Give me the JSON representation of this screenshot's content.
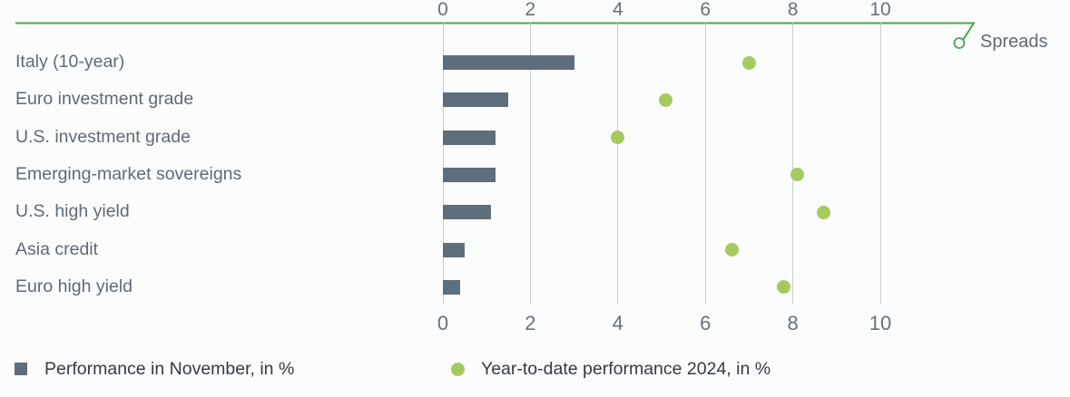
{
  "chart_data": {
    "type": "bar",
    "orientation": "horizontal",
    "title": "",
    "categories": [
      "Italy (10-year)",
      "Euro investment grade",
      "U.S. investment grade",
      "Emerging-market sovereigns",
      "U.S. high yield",
      "Asia credit",
      "Euro high yield"
    ],
    "series": [
      {
        "name": "Performance in November, in %",
        "type": "bar",
        "color": "#5f6e7b",
        "values": [
          3.0,
          1.5,
          1.2,
          1.2,
          1.1,
          0.5,
          0.4
        ]
      },
      {
        "name": "Year-to-date performance 2024, in %",
        "type": "scatter",
        "color": "#a6ca60",
        "values": [
          7.0,
          5.1,
          4.0,
          8.1,
          8.7,
          6.6,
          7.8
        ]
      }
    ],
    "x_axis": {
      "ticks": [
        "0",
        "2",
        "4",
        "6",
        "8",
        "10"
      ],
      "xlim": [
        0,
        10
      ],
      "positions": "top and bottom",
      "grid": true
    },
    "annotations": [
      {
        "text": "Spreads",
        "target": "top-axis"
      }
    ],
    "legend_position": "bottom",
    "colors": {
      "bar": "#5f6e7b",
      "dot": "#a6ca60",
      "axis_line_green": "#4aa551",
      "gridline": "#c9cdd1",
      "axis_text": "#66727d",
      "category_text": "#5e6b76",
      "legend_text": "#343b41",
      "background": "#fbfcfc"
    }
  }
}
